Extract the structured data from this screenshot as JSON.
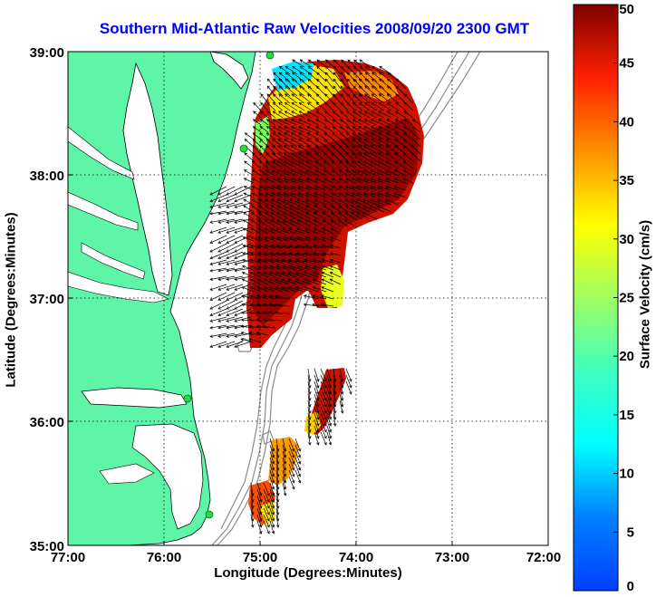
{
  "title": "Southern Mid-Atlantic Raw Velocities 2008/09/20 2300 GMT",
  "xlabel": "Longitude (Degrees:Minutes)",
  "ylabel": "Latitude (Degrees:Minutes)",
  "colorbar": {
    "label": "Surface Velocity (cm/s)",
    "ticks": [
      "0",
      "5",
      "10",
      "15",
      "20",
      "25",
      "30",
      "35",
      "40",
      "45",
      "50"
    ],
    "range": [
      0,
      50
    ],
    "colormap": "jet"
  },
  "axes": {
    "x_ticks": [
      "77:00",
      "76:00",
      "75:00",
      "74:00",
      "73:00",
      "72:00"
    ],
    "y_ticks": [
      "35:00",
      "36:00",
      "37:00",
      "38:00",
      "39:00"
    ],
    "grid": "dotted"
  },
  "colors": {
    "land": "#5ef5a8",
    "title": "#0000ff",
    "bathymetry": "#8c8c8c"
  }
}
